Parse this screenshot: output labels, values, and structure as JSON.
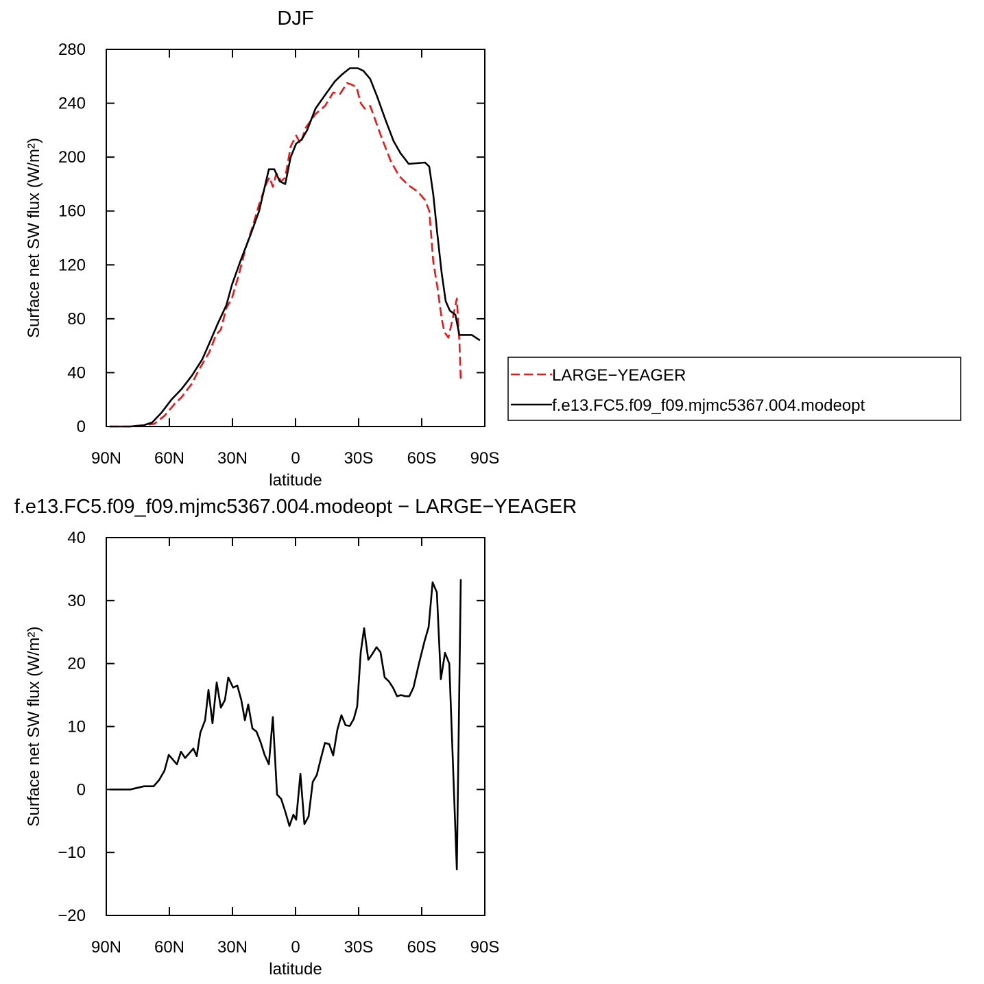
{
  "chart_data": [
    {
      "type": "line",
      "title": "DJF",
      "xlabel": "latitude",
      "ylabel": "Surface net SW flux (W/m²)",
      "xlim": [
        90,
        -90
      ],
      "ylim": [
        0,
        280
      ],
      "xticks": [
        {
          "value": 90,
          "label": "90N"
        },
        {
          "value": 60,
          "label": "60N"
        },
        {
          "value": 30,
          "label": "30N"
        },
        0,
        {
          "value": -30,
          "label": "30S"
        },
        {
          "value": -60,
          "label": "60S"
        },
        {
          "value": -90,
          "label": "90S"
        }
      ],
      "yticks": [
        0,
        40,
        80,
        120,
        160,
        200,
        240,
        280
      ],
      "legend": "right",
      "series": [
        {
          "name": "LARGE−YEAGER",
          "color": "#e41a1c",
          "dashed": true,
          "x": [
            88.4,
            78.6,
            71.4,
            67.2,
            62.3,
            57.4,
            54.1,
            49.2,
            46.0,
            41.1,
            37.8,
            35.5,
            32.9,
            30.3,
            27.1,
            23.8,
            20.5,
            17.3,
            14.0,
            12.4,
            10.8,
            9.1,
            6.8,
            4.9,
            2.3,
            -0.3,
            -2.3,
            -4.9,
            -9.5,
            -14.0,
            -17.9,
            -21.2,
            -24.5,
            -26.4,
            -29.0,
            -31.0,
            -32.9,
            -35.5,
            -40.8,
            -45.3,
            -49.2,
            -53.8,
            -58.4,
            -61.6,
            -63.6,
            -65.5,
            -67.5,
            -69.5,
            -70.8,
            -72.7,
            -74.7,
            -76.7,
            -78.0,
            -78.6
          ],
          "values": [
            0,
            0,
            1,
            2,
            8,
            17,
            22,
            32,
            42,
            55,
            68,
            72,
            88,
            95,
            112,
            132,
            148,
            165,
            180,
            185,
            178,
            188,
            182,
            185,
            208,
            216,
            210,
            222,
            232,
            238,
            248,
            247,
            255,
            254,
            252,
            240,
            236,
            238,
            215,
            197,
            186,
            179,
            174,
            168,
            160,
            122,
            103,
            80,
            70,
            66,
            80,
            95,
            60,
            33
          ]
        },
        {
          "name": "f.e13.FC5.f09_f09.mjmc5367.004.modeopt",
          "color": "#000000",
          "dashed": false,
          "x": [
            88.4,
            78.6,
            72.1,
            68.2,
            63.9,
            59.0,
            54.1,
            49.2,
            44.3,
            40.1,
            36.8,
            32.9,
            30.3,
            26.4,
            21.5,
            17.3,
            12.7,
            10.1,
            7.5,
            4.9,
            2.3,
            -0.3,
            -2.9,
            -5.5,
            -9.5,
            -14.0,
            -18.6,
            -21.8,
            -25.8,
            -29.7,
            -32.3,
            -35.5,
            -38.8,
            -42.7,
            -46.6,
            -49.9,
            -53.8,
            -61.6,
            -63.6,
            -65.5,
            -67.5,
            -69.5,
            -71.4,
            -73.4,
            -76.0,
            -77.9,
            -83.8,
            -87.7
          ],
          "values": [
            0,
            0,
            1,
            3,
            10,
            20,
            28,
            38,
            50,
            65,
            77,
            90,
            105,
            122,
            142,
            160,
            191,
            191,
            182,
            180,
            200,
            210,
            213,
            220,
            236,
            246,
            256,
            261,
            266,
            266,
            264,
            258,
            245,
            228,
            212,
            203,
            195,
            196,
            193,
            172,
            142,
            114,
            93,
            86,
            83,
            68,
            68,
            64
          ]
        }
      ]
    },
    {
      "type": "line",
      "title": "f.e13.FC5.f09_f09.mjmc5367.004.modeopt − LARGE−YEAGER",
      "xlabel": "latitude",
      "ylabel": "Surface net SW flux (W/m²)",
      "xlim": [
        90,
        -90
      ],
      "ylim": [
        -20,
        40
      ],
      "xticks": [
        {
          "value": 90,
          "label": "90N"
        },
        {
          "value": 60,
          "label": "60N"
        },
        {
          "value": 30,
          "label": "30N"
        },
        0,
        {
          "value": -30,
          "label": "30S"
        },
        {
          "value": -60,
          "label": "60S"
        },
        {
          "value": -90,
          "label": "90S"
        }
      ],
      "yticks": [
        {
          "value": -20,
          "label": "−20"
        },
        {
          "value": -10,
          "label": "−10"
        },
        0,
        10,
        20,
        30,
        40
      ],
      "series": [
        {
          "color": "#000000",
          "dashed": false,
          "x": [
            88.4,
            78.6,
            72.1,
            69.5,
            67.5,
            64.9,
            62.3,
            60.3,
            56.4,
            54.5,
            52.5,
            48.6,
            47.0,
            45.3,
            43.0,
            41.4,
            39.5,
            37.5,
            35.5,
            33.6,
            32.0,
            29.7,
            27.7,
            25.8,
            24.1,
            22.5,
            20.5,
            18.6,
            16.6,
            14.7,
            12.7,
            10.8,
            8.8,
            6.8,
            4.9,
            2.9,
            1.0,
            -0.3,
            -2.3,
            -4.2,
            -6.2,
            -8.2,
            -10.1,
            -12.1,
            -14.0,
            -16.0,
            -17.9,
            -19.9,
            -21.8,
            -23.8,
            -25.8,
            -27.7,
            -29.3,
            -31.0,
            -32.6,
            -34.6,
            -36.5,
            -38.5,
            -40.4,
            -42.4,
            -44.3,
            -46.3,
            -48.3,
            -50.2,
            -52.2,
            -54.1,
            -56.1,
            -58.7,
            -61.3,
            -63.3,
            -65.2,
            -67.2,
            -69.1,
            -71.1,
            -73.1,
            -76.7,
            -78.6
          ],
          "values": [
            0,
            0,
            0.5,
            0.5,
            0.5,
            1.5,
            3,
            5.5,
            4,
            6,
            5,
            6.5,
            5.3,
            9,
            11,
            15.8,
            10.5,
            17,
            13,
            14.2,
            17.8,
            16.2,
            16.5,
            14.2,
            11,
            13.5,
            9.7,
            9.2,
            7.5,
            5.5,
            4,
            11.5,
            -0.8,
            -1.5,
            -3.5,
            -5.8,
            -4,
            -4.8,
            2.5,
            -5.5,
            -4.3,
            1.2,
            2.3,
            5,
            7.4,
            7.2,
            5.4,
            9.5,
            11.8,
            10.2,
            10.1,
            11.2,
            13.2,
            21.8,
            25.6,
            20.6,
            21.5,
            22.6,
            21.8,
            17.8,
            17.2,
            16.2,
            14.8,
            15,
            14.8,
            14.8,
            16.2,
            20,
            23.5,
            25.8,
            32.9,
            31.3,
            17.5,
            21.7,
            20,
            -12.7,
            33.4
          ]
        }
      ]
    }
  ]
}
